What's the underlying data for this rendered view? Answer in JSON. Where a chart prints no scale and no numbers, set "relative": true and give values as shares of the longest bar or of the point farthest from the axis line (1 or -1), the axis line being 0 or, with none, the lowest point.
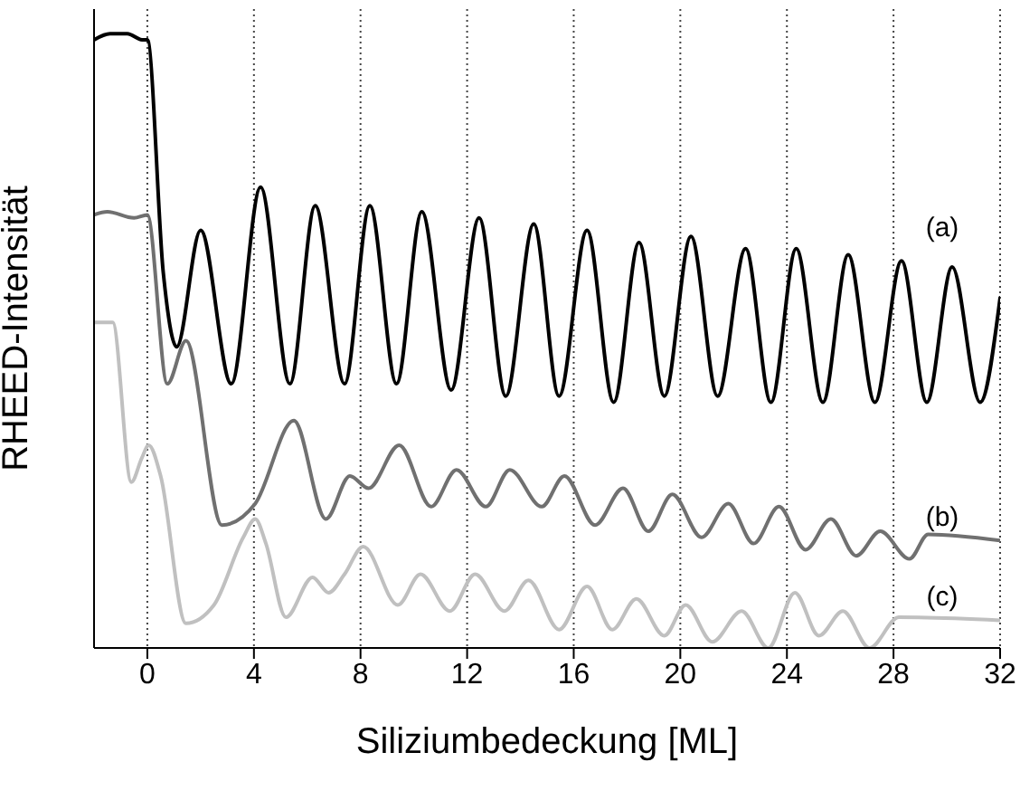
{
  "chart_data": {
    "type": "line",
    "xlabel": "Siliziumbedeckung [ML]",
    "ylabel": "RHEED-Intensität",
    "relative": true,
    "xlim": [
      -2,
      32
    ],
    "xticks": [
      0,
      4,
      8,
      12,
      16,
      20,
      24,
      28,
      32
    ],
    "grid": "x",
    "legend": false,
    "marker": "none",
    "line_style": "solid",
    "series": [
      {
        "name": "(a)",
        "color": "#000000",
        "x": [
          -2,
          -1.4,
          -0.75,
          -0.2,
          0,
          0.6,
          1.1,
          2,
          3.15,
          4.25,
          5.35,
          6.3,
          7.4,
          8.35,
          9.35,
          10.3,
          11.4,
          12.45,
          13.45,
          14.5,
          15.45,
          16.5,
          17.5,
          18.45,
          19.4,
          20.4,
          21.4,
          22.45,
          23.4,
          24.35,
          25.35,
          26.3,
          27.3,
          28.3,
          29.25,
          30.2,
          31.25,
          32
        ],
        "values": [
          0.99,
          1,
          1,
          0.99,
          0.99,
          0.61,
          0.49,
          0.68,
          0.43,
          0.75,
          0.43,
          0.72,
          0.43,
          0.72,
          0.43,
          0.71,
          0.42,
          0.7,
          0.41,
          0.69,
          0.41,
          0.68,
          0.4,
          0.66,
          0.41,
          0.67,
          0.41,
          0.65,
          0.4,
          0.65,
          0.4,
          0.64,
          0.4,
          0.63,
          0.4,
          0.62,
          0.4,
          0.57
        ]
      },
      {
        "name": "(b)",
        "color": "#707070",
        "x": [
          -2,
          -1.5,
          -0.5,
          0,
          0.75,
          1.45,
          2.8,
          4.05,
          5.5,
          6.7,
          7.6,
          8.3,
          9.45,
          10.65,
          11.6,
          12.7,
          13.6,
          14.8,
          15.65,
          16.8,
          17.85,
          18.8,
          19.7,
          20.8,
          21.8,
          22.75,
          23.7,
          24.7,
          25.65,
          26.6,
          27.5,
          28.6,
          29.3,
          32
        ],
        "values": [
          0.705,
          0.71,
          0.7,
          0.705,
          0.43,
          0.5,
          0.2,
          0.235,
          0.37,
          0.21,
          0.28,
          0.26,
          0.33,
          0.23,
          0.29,
          0.23,
          0.29,
          0.23,
          0.28,
          0.2,
          0.26,
          0.19,
          0.25,
          0.18,
          0.235,
          0.17,
          0.23,
          0.16,
          0.21,
          0.15,
          0.19,
          0.145,
          0.185,
          0.175
        ]
      },
      {
        "name": "(c)",
        "color": "#c0c0c0",
        "x": [
          -2,
          -1.3,
          -0.6,
          -0.2,
          0.05,
          0.5,
          1.45,
          2.5,
          3.6,
          4.05,
          4.45,
          5.2,
          6.2,
          6.8,
          7.4,
          8.1,
          9.4,
          10.25,
          11.35,
          12.3,
          13.4,
          14.3,
          15.45,
          16.5,
          17.45,
          18.35,
          19.4,
          20.2,
          21.2,
          22.3,
          23.3,
          24.3,
          25.2,
          26.1,
          27.1,
          28.2,
          32
        ],
        "values": [
          0.53,
          0.53,
          0.27,
          0.31,
          0.33,
          0.28,
          0.04,
          0.07,
          0.18,
          0.21,
          0.17,
          0.05,
          0.115,
          0.09,
          0.12,
          0.165,
          0.07,
          0.12,
          0.06,
          0.12,
          0.06,
          0.11,
          0.03,
          0.1,
          0.03,
          0.08,
          0.02,
          0.07,
          0.01,
          0.06,
          0,
          0.09,
          0.02,
          0.06,
          0,
          0.05,
          0.045
        ]
      }
    ]
  }
}
